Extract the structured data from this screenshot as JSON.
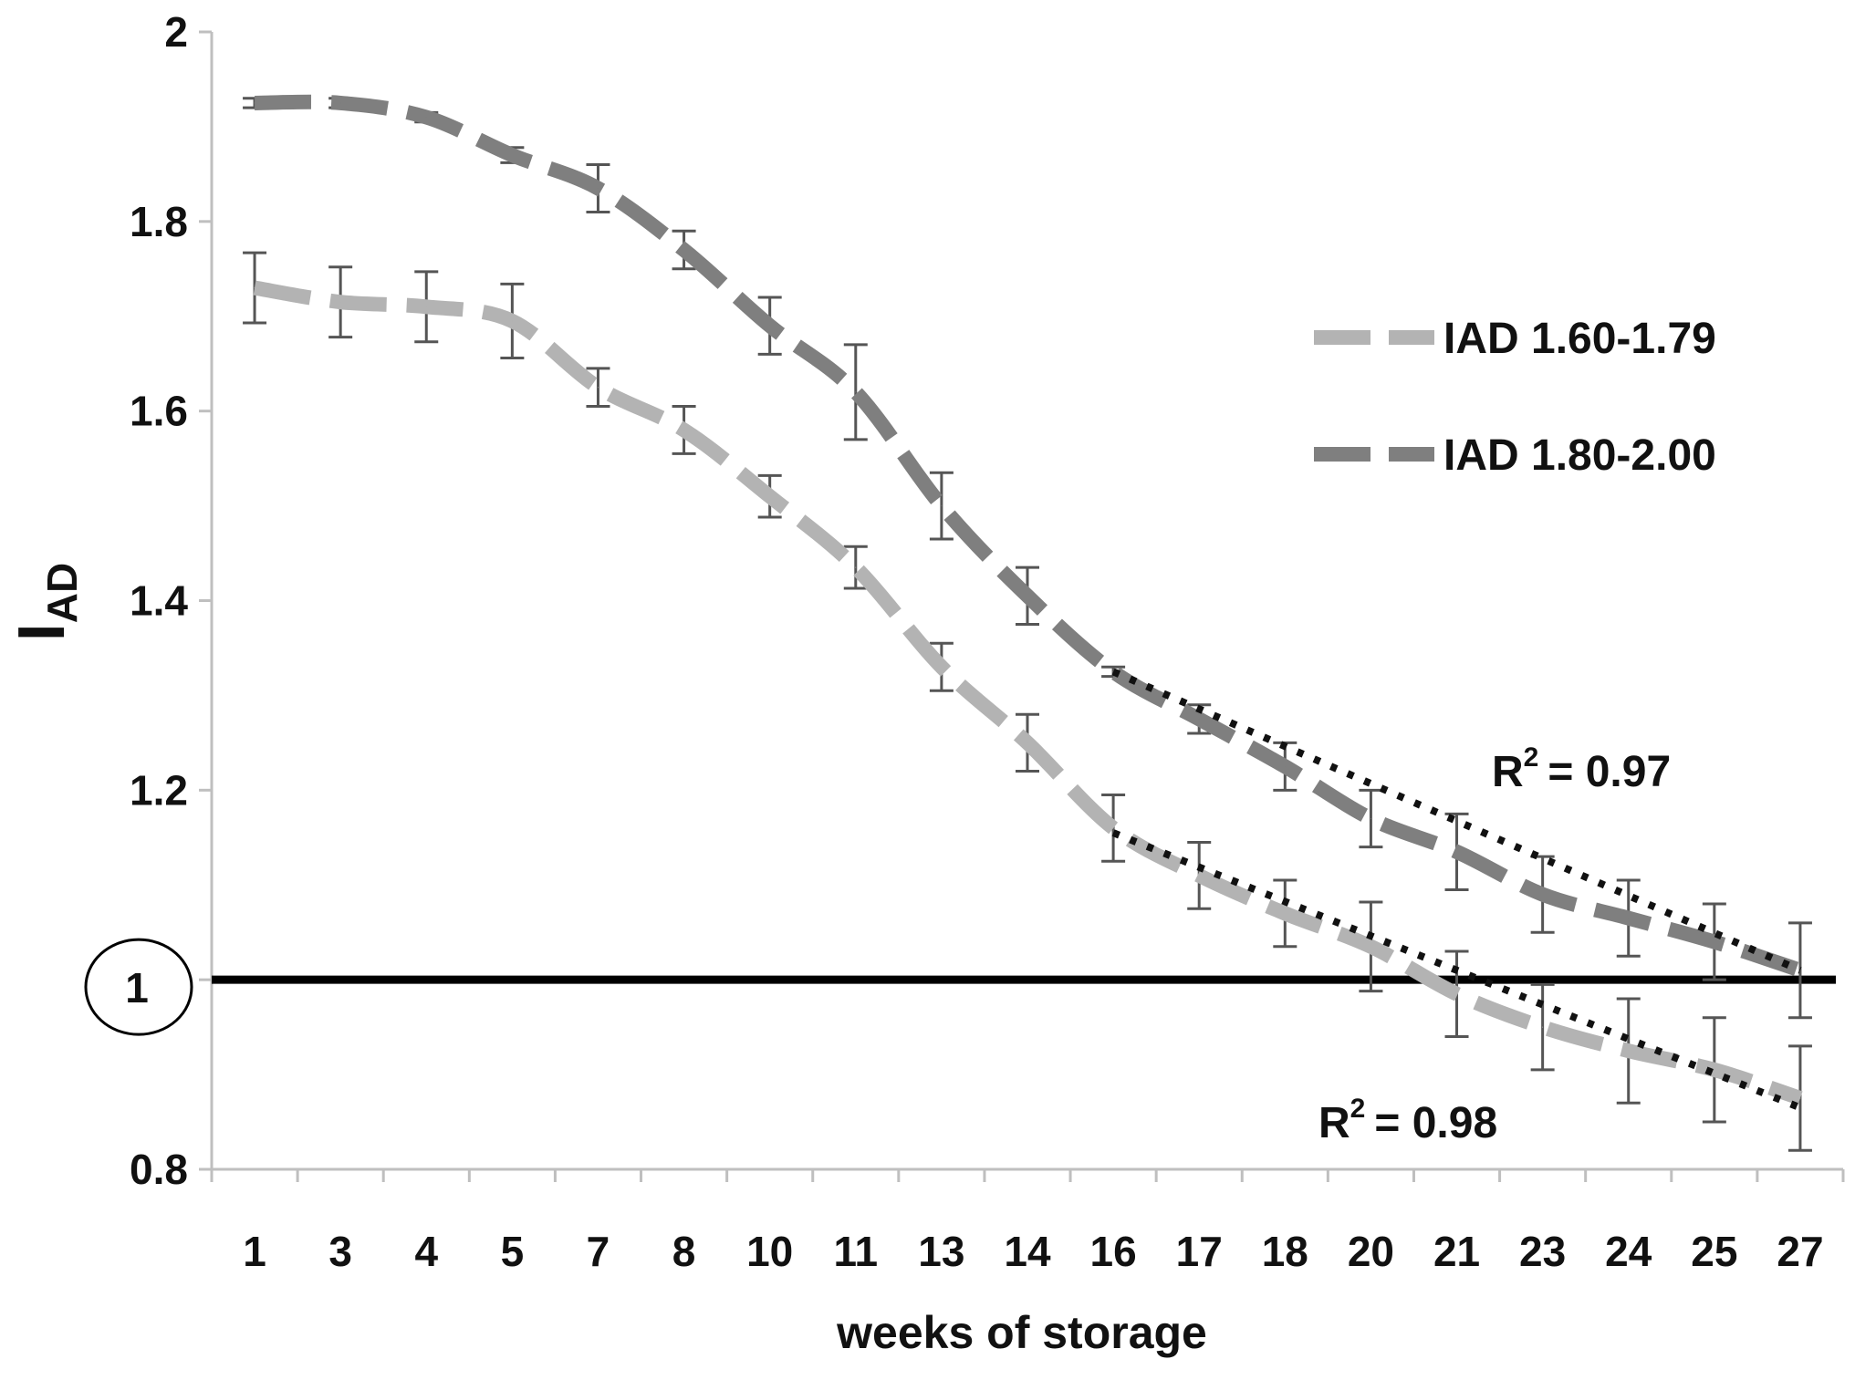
{
  "chart_data": {
    "type": "line",
    "xlabel": "weeks of storage",
    "ylabel_main": "I",
    "ylabel_sub": "AD",
    "ylim": [
      0.8,
      2.0
    ],
    "yticks": [
      "0.8",
      "1",
      "1.2",
      "1.4",
      "1.6",
      "1.8",
      "2"
    ],
    "ytick_values": [
      0.8,
      1.0,
      1.2,
      1.4,
      1.6,
      1.8,
      2.0
    ],
    "categories": [
      "1",
      "3",
      "4",
      "5",
      "7",
      "8",
      "10",
      "11",
      "13",
      "14",
      "16",
      "17",
      "18",
      "20",
      "21",
      "23",
      "24",
      "25",
      "27"
    ],
    "grid": false,
    "legend_position": "right",
    "reference_line": {
      "y": 1.0,
      "label": "1",
      "circled": true,
      "color": "#000000"
    },
    "series": [
      {
        "name": "IAD 1.60-1.79",
        "color": "#b3b3b3",
        "values": [
          1.73,
          1.715,
          1.71,
          1.695,
          1.625,
          1.58,
          1.51,
          1.435,
          1.33,
          1.25,
          1.16,
          1.11,
          1.07,
          1.035,
          0.985,
          0.95,
          0.925,
          0.905,
          0.875
        ],
        "errors": [
          0.037,
          0.037,
          0.037,
          0.039,
          0.02,
          0.025,
          0.022,
          0.022,
          0.025,
          0.03,
          0.035,
          0.035,
          0.035,
          0.047,
          0.045,
          0.045,
          0.055,
          0.055,
          0.055
        ]
      },
      {
        "name": "IAD 1.80-2.00",
        "color": "#7f7f7f",
        "values": [
          1.925,
          1.925,
          1.91,
          1.87,
          1.835,
          1.77,
          1.69,
          1.62,
          1.5,
          1.405,
          1.325,
          1.275,
          1.225,
          1.17,
          1.135,
          1.09,
          1.065,
          1.04,
          1.01
        ],
        "errors": [
          0.005,
          0.005,
          0.005,
          0.008,
          0.025,
          0.02,
          0.03,
          0.05,
          0.035,
          0.03,
          0.005,
          0.015,
          0.025,
          0.03,
          0.04,
          0.04,
          0.04,
          0.04,
          0.05
        ]
      }
    ],
    "trendlines": [
      {
        "for_series": "IAD 1.80-2.00",
        "r2_label": "= 0.97",
        "from_week": "16",
        "to_week": "27",
        "y_start": 1.325,
        "y_end": 1.01
      },
      {
        "for_series": "IAD 1.60-1.79",
        "r2_label": "= 0.98",
        "from_week": "16",
        "to_week": "27",
        "y_start": 1.155,
        "y_end": 0.865
      }
    ],
    "r2_prefix": "R",
    "r2_sup": "2"
  }
}
